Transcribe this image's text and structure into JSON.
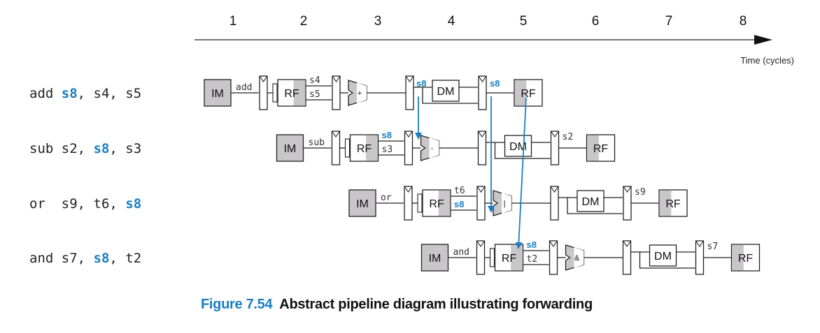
{
  "timeline": {
    "cycles": [
      "1",
      "2",
      "3",
      "4",
      "5",
      "6",
      "7",
      "8"
    ],
    "axis_label": "Time (cycles)"
  },
  "instructions": [
    {
      "mnemonic": "add",
      "dest": "s8",
      "src1": "s4",
      "src2": "s5",
      "text_parts": [
        {
          "t": "add ",
          "hl": false
        },
        {
          "t": "s8",
          "hl": true
        },
        {
          "t": ", s4, s5",
          "hl": false
        }
      ]
    },
    {
      "mnemonic": "sub",
      "dest": "s2",
      "src1": "s8",
      "src2": "s3",
      "text_parts": [
        {
          "t": "sub s2, ",
          "hl": false
        },
        {
          "t": "s8",
          "hl": true
        },
        {
          "t": ", s3",
          "hl": false
        }
      ]
    },
    {
      "mnemonic": "or",
      "dest": "s9",
      "src1": "t6",
      "src2": "s8",
      "text_parts": [
        {
          "t": "or  s9, t6, ",
          "hl": false
        },
        {
          "t": "s8",
          "hl": true
        }
      ]
    },
    {
      "mnemonic": "and",
      "dest": "s7",
      "src1": "s8",
      "src2": "t2",
      "text_parts": [
        {
          "t": "and s7, ",
          "hl": false
        },
        {
          "t": "s8",
          "hl": true
        },
        {
          "t": ", t2",
          "hl": false
        }
      ]
    }
  ],
  "stages": {
    "fetch": "IM",
    "decode": "RF",
    "memory": "DM",
    "writeback": "RF"
  },
  "alu_symbols": [
    "+",
    "-",
    "|",
    "&"
  ],
  "forwarded_register": "s8",
  "colors": {
    "highlight": "#1a7ec2",
    "shaded_block": "#c8c6c8",
    "line": "#222222"
  },
  "caption": {
    "number": "Figure 7.54",
    "text": "Abstract pipeline diagram illustrating forwarding"
  }
}
